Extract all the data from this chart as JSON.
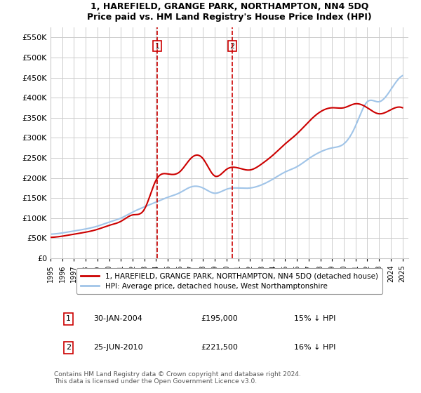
{
  "title": "1, HAREFIELD, GRANGE PARK, NORTHAMPTON, NN4 5DQ",
  "subtitle": "Price paid vs. HM Land Registry's House Price Index (HPI)",
  "legend_line1": "1, HAREFIELD, GRANGE PARK, NORTHAMPTON, NN4 5DQ (detached house)",
  "legend_line2": "HPI: Average price, detached house, West Northamptonshire",
  "marker1_date": "30-JAN-2004",
  "marker1_price": "£195,000",
  "marker1_hpi": "15% ↓ HPI",
  "marker2_date": "25-JUN-2010",
  "marker2_price": "£221,500",
  "marker2_hpi": "16% ↓ HPI",
  "footer": "Contains HM Land Registry data © Crown copyright and database right 2024.\nThis data is licensed under the Open Government Licence v3.0.",
  "ylabel": "",
  "ylim": [
    0,
    575000
  ],
  "yticks": [
    0,
    50000,
    100000,
    150000,
    200000,
    250000,
    300000,
    350000,
    400000,
    450000,
    500000,
    550000
  ],
  "ytick_labels": [
    "£0",
    "£50K",
    "£100K",
    "£150K",
    "£200K",
    "£250K",
    "£300K",
    "£350K",
    "£400K",
    "£450K",
    "£500K",
    "£550K"
  ],
  "hpi_color": "#a0c4e8",
  "price_color": "#cc0000",
  "vline_color": "#cc0000",
  "vline_x1": 2004.08,
  "vline_x2": 2010.48,
  "background_color": "#ffffff",
  "grid_color": "#cccccc",
  "hpi_years": [
    1995,
    1996,
    1997,
    1998,
    1999,
    2000,
    2001,
    2002,
    2003,
    2004,
    2005,
    2006,
    2007,
    2008,
    2009,
    2010,
    2011,
    2012,
    2013,
    2014,
    2015,
    2016,
    2017,
    2018,
    2019,
    2020,
    2021,
    2022,
    2023,
    2024,
    2025
  ],
  "hpi_values": [
    60000,
    63000,
    68000,
    73000,
    80000,
    90000,
    100000,
    115000,
    128000,
    140000,
    152000,
    163000,
    178000,
    175000,
    162000,
    172000,
    175000,
    175000,
    183000,
    198000,
    215000,
    228000,
    248000,
    265000,
    275000,
    285000,
    330000,
    390000,
    390000,
    420000,
    455000
  ],
  "price_years": [
    1995,
    1996,
    1997,
    1998,
    1999,
    2000,
    2001,
    2002,
    2003,
    2004,
    2005,
    2006,
    2007,
    2008,
    2009,
    2010,
    2011,
    2012,
    2013,
    2014,
    2015,
    2016,
    2017,
    2018,
    2019,
    2020,
    2021,
    2022,
    2023,
    2024,
    2025
  ],
  "price_values": [
    52000,
    55000,
    60000,
    65000,
    72000,
    82000,
    92000,
    108000,
    122000,
    195000,
    210000,
    215000,
    250000,
    248000,
    205000,
    221500,
    225000,
    220000,
    235000,
    258000,
    285000,
    310000,
    340000,
    365000,
    375000,
    375000,
    385000,
    375000,
    360000,
    370000,
    375000
  ]
}
